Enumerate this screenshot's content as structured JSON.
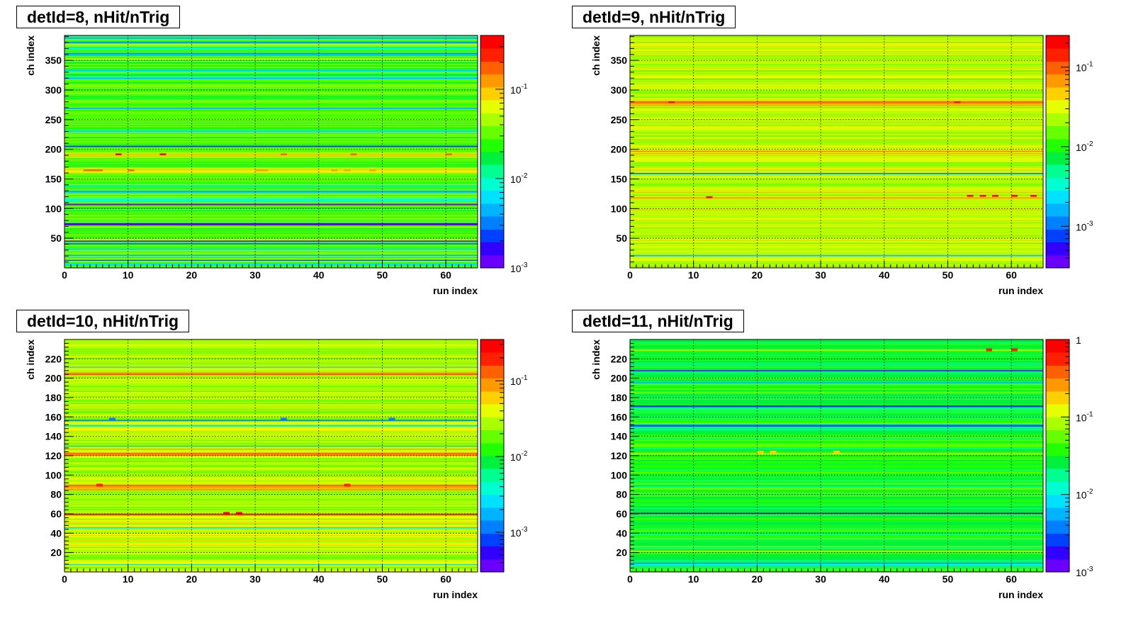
{
  "chart_data": [
    {
      "type": "heatmap",
      "title": "detId=8, nHit/nTrig",
      "xlabel": "run index",
      "ylabel": "ch index",
      "xlim": [
        0,
        65
      ],
      "ylim": [
        0,
        392
      ],
      "x_ticks": [
        0,
        10,
        20,
        30,
        40,
        50,
        60
      ],
      "y_ticks": [
        50,
        100,
        150,
        200,
        250,
        300,
        350
      ],
      "z_scale": "log",
      "zlim": [
        0.001,
        0.4
      ],
      "z_ticks": [
        {
          "value": 0.1,
          "base": "10",
          "exp": "-1"
        },
        {
          "value": 0.01,
          "base": "10",
          "exp": "-2"
        },
        {
          "value": 0.001,
          "base": "10",
          "exp": "-3"
        }
      ],
      "grid": true,
      "typical_value": 0.03,
      "colormap": [
        "#6a00ff",
        "#3200ff",
        "#0040ff",
        "#0080ff",
        "#00b4ff",
        "#00e0ff",
        "#00ffd0",
        "#00ff90",
        "#00f040",
        "#22ff00",
        "#66ff00",
        "#aaff00",
        "#e6ff00",
        "#ffd000",
        "#ff9900",
        "#ff6000",
        "#ff2000",
        "#ff0000"
      ],
      "row_features": [
        {
          "from": 0,
          "to": 392,
          "value": 0.03
        },
        {
          "from": 4,
          "to": 8,
          "value": 0.008
        },
        {
          "from": 12,
          "to": 14,
          "value": 0.004
        },
        {
          "from": 20,
          "to": 22,
          "value": 0.006
        },
        {
          "from": 30,
          "to": 32,
          "value": 0.007
        },
        {
          "from": 40,
          "to": 42,
          "value": 0.003
        },
        {
          "from": 44,
          "to": 46,
          "value": 0.002
        },
        {
          "from": 72,
          "to": 75,
          "value": 0.0015
        },
        {
          "from": 106,
          "to": 108,
          "value": 0.0015
        },
        {
          "from": 112,
          "to": 118,
          "value": 0.008
        },
        {
          "from": 126,
          "to": 130,
          "value": 0.006
        },
        {
          "from": 136,
          "to": 140,
          "value": 0.009
        },
        {
          "from": 160,
          "to": 166,
          "value": 0.06
        },
        {
          "from": 188,
          "to": 192,
          "value": 0.1
        },
        {
          "from": 204,
          "to": 206,
          "value": 0.002
        },
        {
          "from": 228,
          "to": 232,
          "value": 0.008
        },
        {
          "from": 268,
          "to": 270,
          "value": 0.004
        },
        {
          "from": 318,
          "to": 322,
          "value": 0.006
        },
        {
          "from": 330,
          "to": 334,
          "value": 0.008
        },
        {
          "from": 358,
          "to": 362,
          "value": 0.005
        },
        {
          "from": 368,
          "to": 372,
          "value": 0.009
        },
        {
          "from": 378,
          "to": 382,
          "value": 0.004
        },
        {
          "from": 386,
          "to": 390,
          "value": 0.006
        }
      ],
      "hot_cells": [
        {
          "run": 3,
          "ch": 163,
          "value": 0.15
        },
        {
          "run": 4,
          "ch": 163,
          "value": 0.15
        },
        {
          "run": 5,
          "ch": 163,
          "value": 0.2
        },
        {
          "run": 10,
          "ch": 163,
          "value": 0.2
        },
        {
          "run": 30,
          "ch": 163,
          "value": 0.12
        },
        {
          "run": 31,
          "ch": 163,
          "value": 0.12
        },
        {
          "run": 42,
          "ch": 163,
          "value": 0.12
        },
        {
          "run": 44,
          "ch": 163,
          "value": 0.12
        },
        {
          "run": 48,
          "ch": 163,
          "value": 0.12
        },
        {
          "run": 8,
          "ch": 190,
          "value": 0.35
        },
        {
          "run": 15,
          "ch": 190,
          "value": 0.35
        },
        {
          "run": 34,
          "ch": 190,
          "value": 0.15
        },
        {
          "run": 45,
          "ch": 190,
          "value": 0.15
        },
        {
          "run": 60,
          "ch": 190,
          "value": 0.15
        }
      ]
    },
    {
      "type": "heatmap",
      "title": "detId=9, nHit/nTrig",
      "xlabel": "run index",
      "ylabel": "ch index",
      "xlim": [
        0,
        65
      ],
      "ylim": [
        0,
        392
      ],
      "x_ticks": [
        0,
        10,
        20,
        30,
        40,
        50,
        60
      ],
      "y_ticks": [
        50,
        100,
        150,
        200,
        250,
        300,
        350
      ],
      "z_scale": "log",
      "zlim": [
        0.0003,
        0.25
      ],
      "z_ticks": [
        {
          "value": 0.1,
          "base": "10",
          "exp": "-1"
        },
        {
          "value": 0.01,
          "base": "10",
          "exp": "-2"
        },
        {
          "value": 0.001,
          "base": "10",
          "exp": "-3"
        }
      ],
      "grid": true,
      "typical_value": 0.025,
      "colormap": [
        "#6a00ff",
        "#3200ff",
        "#0040ff",
        "#0080ff",
        "#00b4ff",
        "#00e0ff",
        "#00ffd0",
        "#00ff90",
        "#00f040",
        "#22ff00",
        "#66ff00",
        "#aaff00",
        "#e6ff00",
        "#ffd000",
        "#ff9900",
        "#ff6000",
        "#ff2000",
        "#ff0000"
      ],
      "row_features": [
        {
          "from": 0,
          "to": 392,
          "value": 0.025
        },
        {
          "from": 20,
          "to": 22,
          "value": 0.002
        },
        {
          "from": 158,
          "to": 160,
          "value": 0.0015
        },
        {
          "from": 116,
          "to": 120,
          "value": 0.05
        },
        {
          "from": 192,
          "to": 198,
          "value": 0.06
        },
        {
          "from": 274,
          "to": 282,
          "value": 0.08
        }
      ],
      "hot_cells": [
        {
          "run": 6,
          "ch": 278,
          "value": 0.2
        },
        {
          "run": 51,
          "ch": 278,
          "value": 0.2
        },
        {
          "run": 12,
          "ch": 118,
          "value": 0.2
        },
        {
          "run": 53,
          "ch": 120,
          "value": 0.22
        },
        {
          "run": 55,
          "ch": 120,
          "value": 0.22
        },
        {
          "run": 57,
          "ch": 120,
          "value": 0.22
        },
        {
          "run": 60,
          "ch": 120,
          "value": 0.22
        },
        {
          "run": 63,
          "ch": 120,
          "value": 0.22
        }
      ]
    },
    {
      "type": "heatmap",
      "title": "detId=10, nHit/nTrig",
      "xlabel": "run index",
      "ylabel": "ch index",
      "xlim": [
        0,
        65
      ],
      "ylim": [
        0,
        240
      ],
      "x_ticks": [
        0,
        10,
        20,
        30,
        40,
        50,
        60
      ],
      "y_ticks": [
        20,
        40,
        60,
        80,
        100,
        120,
        140,
        160,
        180,
        200,
        220
      ],
      "z_scale": "log",
      "zlim": [
        0.0003,
        0.35
      ],
      "z_ticks": [
        {
          "value": 0.1,
          "base": "10",
          "exp": "-1"
        },
        {
          "value": 0.01,
          "base": "10",
          "exp": "-2"
        },
        {
          "value": 0.001,
          "base": "10",
          "exp": "-3"
        }
      ],
      "grid": true,
      "typical_value": 0.03,
      "colormap": [
        "#6a00ff",
        "#3200ff",
        "#0040ff",
        "#0080ff",
        "#00b4ff",
        "#00e0ff",
        "#00ffd0",
        "#00ff90",
        "#00f040",
        "#22ff00",
        "#66ff00",
        "#aaff00",
        "#e6ff00",
        "#ffd000",
        "#ff9900",
        "#ff6000",
        "#ff2000",
        "#ff0000"
      ],
      "row_features": [
        {
          "from": 0,
          "to": 240,
          "value": 0.03
        },
        {
          "from": 7,
          "to": 8,
          "value": 0.002
        },
        {
          "from": 45,
          "to": 46,
          "value": 0.0015
        },
        {
          "from": 58,
          "to": 60,
          "value": 0.15
        },
        {
          "from": 84,
          "to": 90,
          "value": 0.08
        },
        {
          "from": 120,
          "to": 123,
          "value": 0.1
        },
        {
          "from": 129,
          "to": 130,
          "value": 0.002
        },
        {
          "from": 150,
          "to": 152,
          "value": 0.005
        },
        {
          "from": 156,
          "to": 157,
          "value": 0.0015
        },
        {
          "from": 203,
          "to": 206,
          "value": 0.09
        },
        {
          "from": 211,
          "to": 212,
          "value": 0.002
        }
      ],
      "hot_cells": [
        {
          "run": 25,
          "ch": 59,
          "value": 0.3
        },
        {
          "run": 27,
          "ch": 59,
          "value": 0.3
        },
        {
          "run": 5,
          "ch": 88,
          "value": 0.2
        },
        {
          "run": 44,
          "ch": 88,
          "value": 0.2
        },
        {
          "run": 7,
          "ch": 156,
          "value": 0.001
        },
        {
          "run": 34,
          "ch": 156,
          "value": 0.001
        },
        {
          "run": 51,
          "ch": 156,
          "value": 0.001
        }
      ]
    },
    {
      "type": "heatmap",
      "title": "detId=11, nHit/nTrig",
      "xlabel": "run index",
      "ylabel": "ch index",
      "xlim": [
        0,
        65
      ],
      "ylim": [
        0,
        240
      ],
      "x_ticks": [
        0,
        10,
        20,
        30,
        40,
        50,
        60
      ],
      "y_ticks": [
        20,
        40,
        60,
        80,
        100,
        120,
        140,
        160,
        180,
        200,
        220
      ],
      "z_scale": "log",
      "zlim": [
        0.001,
        1
      ],
      "z_ticks": [
        {
          "value": 1,
          "base": "1",
          "exp": ""
        },
        {
          "value": 0.1,
          "base": "10",
          "exp": "-1"
        },
        {
          "value": 0.01,
          "base": "10",
          "exp": "-2"
        },
        {
          "value": 0.001,
          "base": "10",
          "exp": "-3"
        }
      ],
      "grid": true,
      "typical_value": 0.03,
      "colormap": [
        "#6a00ff",
        "#3200ff",
        "#0040ff",
        "#0080ff",
        "#00b4ff",
        "#00e0ff",
        "#00ffd0",
        "#00ff90",
        "#00f040",
        "#22ff00",
        "#66ff00",
        "#aaff00",
        "#e6ff00",
        "#ffd000",
        "#ff9900",
        "#ff6000",
        "#ff2000",
        "#ff0000"
      ],
      "row_features": [
        {
          "from": 0,
          "to": 240,
          "value": 0.03
        },
        {
          "from": 6,
          "to": 10,
          "value": 0.008
        },
        {
          "from": 21,
          "to": 22,
          "value": 0.1
        },
        {
          "from": 60,
          "to": 61,
          "value": 0.0015
        },
        {
          "from": 121,
          "to": 123,
          "value": 0.08
        },
        {
          "from": 150,
          "to": 152,
          "value": 0.002
        },
        {
          "from": 170,
          "to": 172,
          "value": 0.003
        },
        {
          "from": 194,
          "to": 196,
          "value": 0.006
        },
        {
          "from": 207,
          "to": 208,
          "value": 0.0015
        },
        {
          "from": 228,
          "to": 230,
          "value": 0.1
        }
      ],
      "hot_cells": [
        {
          "run": 20,
          "ch": 122,
          "value": 0.2
        },
        {
          "run": 22,
          "ch": 122,
          "value": 0.2
        },
        {
          "run": 32,
          "ch": 122,
          "value": 0.2
        },
        {
          "run": 56,
          "ch": 228,
          "value": 0.5
        },
        {
          "run": 60,
          "ch": 228,
          "value": 0.5
        }
      ]
    }
  ]
}
